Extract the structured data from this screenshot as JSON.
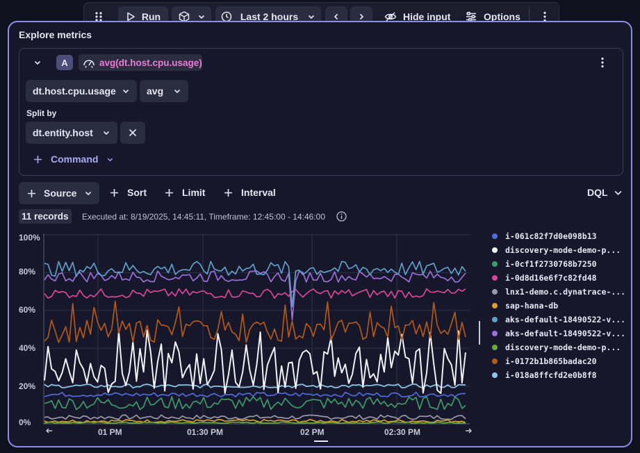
{
  "toolbar": {
    "run_label": "Run",
    "timeframe_label": "Last 2 hours",
    "hide_input_label": "Hide input",
    "options_label": "Options"
  },
  "panel": {
    "title": "Explore metrics"
  },
  "query": {
    "badge": "A",
    "expression": "avg(dt.host.cpu.usage)",
    "metric": "dt.host.cpu.usage",
    "aggregation": "avg",
    "split_by_label": "Split by",
    "split_by_value": "dt.entity.host",
    "command_label": "Command"
  },
  "actions": {
    "source": "Source",
    "sort": "Sort",
    "limit": "Limit",
    "interval": "Interval",
    "dql": "DQL"
  },
  "status": {
    "records": "11 records",
    "executed": "Executed at: 8/19/2025, 14:45:11, Timeframe: 12:45:00 - 14:46:00"
  },
  "chart_data": {
    "type": "line",
    "y_ticks": [
      "100%",
      "80%",
      "60%",
      "40%",
      "20%",
      "0%"
    ],
    "x_ticks": [
      "01 PM",
      "01:30 PM",
      "02 PM",
      "02:30 PM"
    ],
    "ylim": [
      0,
      100
    ],
    "xlim": [
      "12:45",
      "14:46"
    ],
    "grid": true,
    "legend_position": "right",
    "series": [
      {
        "name": "i-061c82f7d0e098b13",
        "color": "#4f6bdc",
        "base": 15.5,
        "amp": 1.2
      },
      {
        "name": "discovery-mode-demo-p...",
        "color": "#f2f2f7",
        "base": 28,
        "amp": 12
      },
      {
        "name": "i-0cf1f2730768b7250",
        "color": "#3f9a6a",
        "base": 11,
        "amp": 3.5
      },
      {
        "name": "i-0d8d16e6f7c82fd48",
        "color": "#d9479a",
        "base": 69,
        "amp": 2.5
      },
      {
        "name": "lnx1-demo.c.dynatrace-...",
        "color": "#9a9aaa",
        "base": 3.5,
        "amp": 1.2
      },
      {
        "name": "sap-hana-db",
        "color": "#d9a030",
        "base": 1.5,
        "amp": 0.8
      },
      {
        "name": "aks-default-18490522-v...",
        "color": "#5fa0c8",
        "base": 82,
        "amp": 4
      },
      {
        "name": "aks-default-18490522-v...",
        "color": "#9a6fd8",
        "base": 78,
        "amp": 3
      },
      {
        "name": "discovery-mode-demo-p...",
        "color": "#6aaa3a",
        "base": 0.6,
        "amp": 0.4
      },
      {
        "name": "i-0172b1b865badac20",
        "color": "#b35a1a",
        "base": 49,
        "amp": 6
      },
      {
        "name": "i-018a8ffcfd2e0b8f8",
        "color": "#8cc8ec",
        "base": 20,
        "amp": 1
      }
    ]
  }
}
